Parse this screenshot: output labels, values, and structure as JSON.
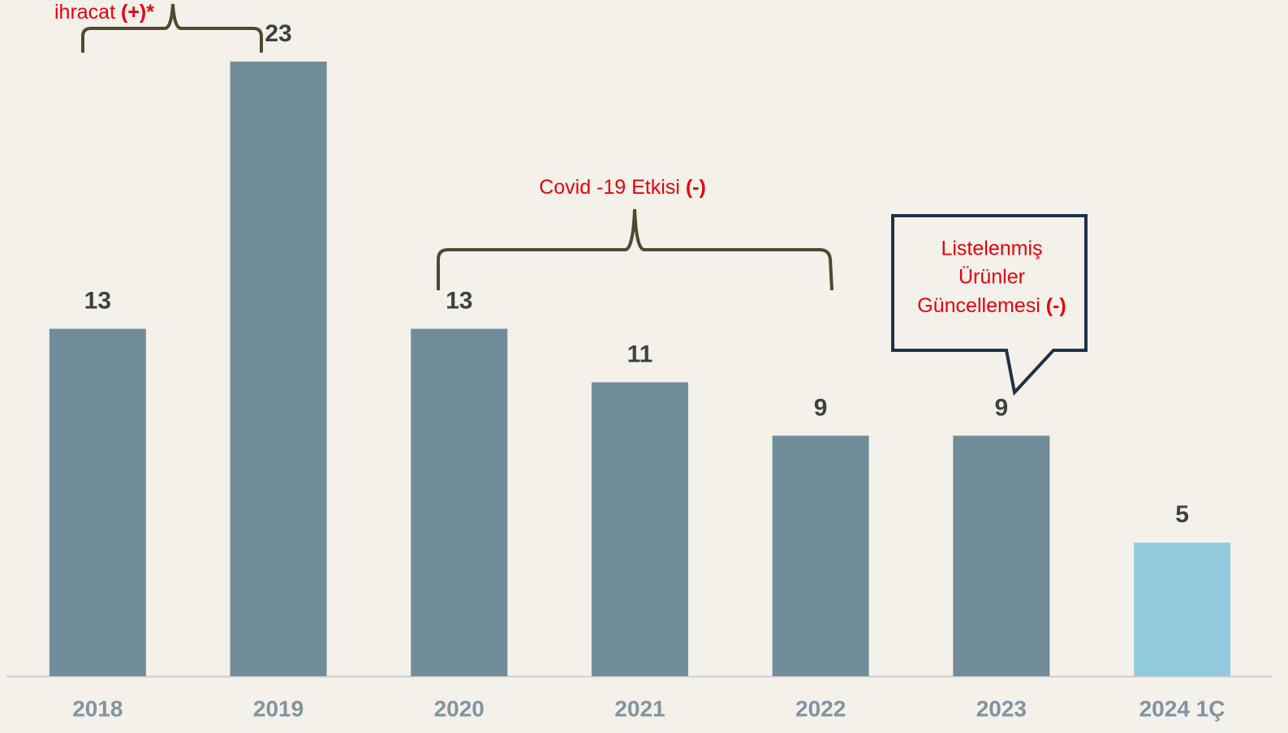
{
  "chart_data": {
    "type": "bar",
    "categories": [
      "2018",
      "2019",
      "2020",
      "2021",
      "2022",
      "2023",
      "2024 1Ç"
    ],
    "values": [
      13,
      23,
      13,
      11,
      9,
      9,
      5
    ],
    "colors": [
      "#718d99",
      "#718d99",
      "#718d99",
      "#718d99",
      "#718d99",
      "#718d99",
      "#92cbdd"
    ],
    "ylim": [
      0,
      25
    ],
    "annotations": [
      {
        "text": "ihracat",
        "emphasis": "(+)*"
      },
      {
        "text": "Covid -19 Etkisi",
        "emphasis": "(-)"
      },
      {
        "lines": [
          "Listelenmiş",
          "Ürünler",
          "Güncellemesi"
        ],
        "emphasis": "(-)"
      }
    ]
  }
}
